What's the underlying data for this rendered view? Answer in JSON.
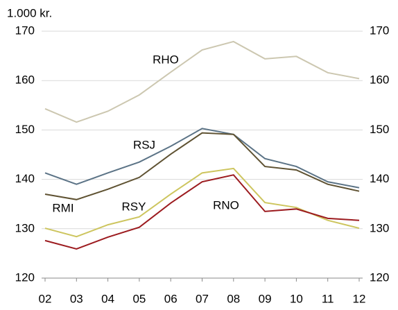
{
  "chart_data": {
    "type": "line",
    "unit_label": "1.000 kr.",
    "categories": [
      "02",
      "03",
      "04",
      "05",
      "06",
      "07",
      "08",
      "09",
      "10",
      "11",
      "12"
    ],
    "series": [
      {
        "name": "RHO",
        "color": "#ccc7b0",
        "values": [
          154.3,
          151.6,
          153.8,
          157.1,
          161.7,
          166.2,
          167.9,
          164.4,
          164.9,
          161.6,
          160.4
        ]
      },
      {
        "name": "RSJ",
        "color": "#5b7386",
        "values": [
          141.3,
          139.0,
          141.3,
          143.5,
          146.7,
          150.3,
          149.1,
          144.2,
          142.6,
          139.5,
          138.3
        ]
      },
      {
        "name": "RMI",
        "color": "#5f5232",
        "values": [
          137.0,
          135.9,
          138.0,
          140.4,
          145.1,
          149.4,
          149.1,
          142.6,
          141.9,
          139.0,
          137.6
        ]
      },
      {
        "name": "RSY",
        "color": "#cdc55e",
        "values": [
          130.1,
          128.4,
          130.8,
          132.4,
          137.0,
          141.3,
          142.2,
          135.3,
          134.3,
          131.7,
          130.1
        ]
      },
      {
        "name": "RNO",
        "color": "#9c1b1f",
        "values": [
          127.6,
          125.9,
          128.3,
          130.3,
          135.2,
          139.5,
          140.9,
          133.5,
          134.0,
          132.1,
          131.7
        ]
      }
    ],
    "ylim": [
      120,
      170
    ],
    "yticks": [
      120,
      130,
      140,
      150,
      160,
      170
    ],
    "y2lim": [
      120,
      170
    ],
    "y2ticks": [
      120,
      130,
      140,
      150,
      160,
      170
    ],
    "grid": true
  }
}
